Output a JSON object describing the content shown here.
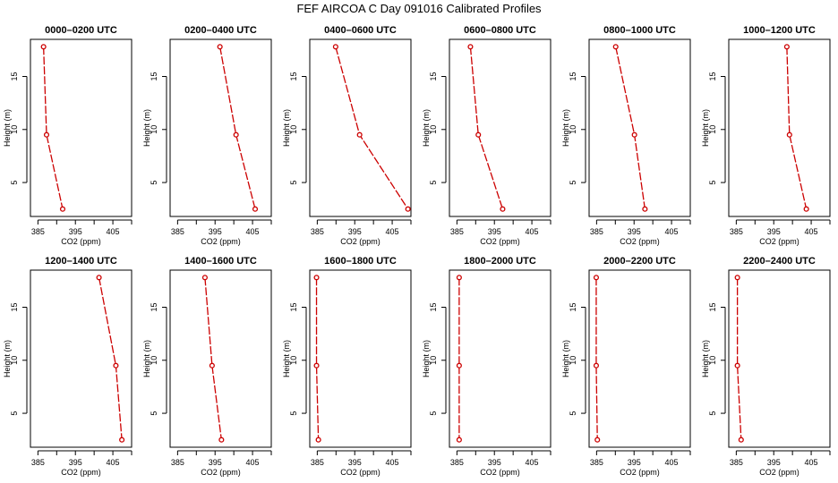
{
  "title": "FEF AIRCOA C  Day 091016  Calibrated Profiles",
  "chart_data": {
    "type": "line",
    "xlabel": "CO2 (ppm)",
    "ylabel": "Height (m)",
    "xlim": [
      383,
      410
    ],
    "ylim": [
      1.8,
      18.5
    ],
    "xticks": [
      385,
      395,
      405
    ],
    "xminor": [
      390,
      400,
      410
    ],
    "yticks": [
      5,
      10,
      15
    ],
    "series_color": "#cc0000",
    "panels": [
      {
        "title": "0000–0200 UTC",
        "heights": [
          17.8,
          9.5,
          2.5
        ],
        "co2": [
          386.5,
          387.3,
          391.6
        ]
      },
      {
        "title": "0200–0400 UTC",
        "heights": [
          17.8,
          9.5,
          2.5
        ],
        "co2": [
          396.3,
          400.6,
          405.7
        ]
      },
      {
        "title": "0400–0600 UTC",
        "heights": [
          17.8,
          9.5,
          2.5
        ],
        "co2": [
          389.9,
          396.3,
          409.2
        ]
      },
      {
        "title": "0600–0800 UTC",
        "heights": [
          17.8,
          9.5,
          2.5
        ],
        "co2": [
          388.6,
          390.7,
          397.2
        ]
      },
      {
        "title": "0800–1000 UTC",
        "heights": [
          17.8,
          9.5,
          2.5
        ],
        "co2": [
          390.1,
          395.1,
          397.9
        ]
      },
      {
        "title": "1000–1200 UTC",
        "heights": [
          17.8,
          9.5,
          2.5
        ],
        "co2": [
          398.5,
          399.2,
          403.7
        ]
      },
      {
        "title": "1200–1400 UTC",
        "heights": [
          17.8,
          9.5,
          2.5
        ],
        "co2": [
          401.3,
          405.8,
          407.4
        ]
      },
      {
        "title": "1400–1600 UTC",
        "heights": [
          17.8,
          9.5,
          2.5
        ],
        "co2": [
          392.3,
          394.2,
          396.7
        ]
      },
      {
        "title": "1600–1800 UTC",
        "heights": [
          17.8,
          9.5,
          2.5
        ],
        "co2": [
          384.8,
          384.8,
          385.3
        ]
      },
      {
        "title": "1800–2000 UTC",
        "heights": [
          17.8,
          9.5,
          2.5
        ],
        "co2": [
          385.6,
          385.6,
          385.6
        ]
      },
      {
        "title": "2000–2200 UTC",
        "heights": [
          17.8,
          9.5,
          2.5
        ],
        "co2": [
          384.9,
          384.9,
          385.2
        ]
      },
      {
        "title": "2200–2400 UTC",
        "heights": [
          17.8,
          9.5,
          2.5
        ],
        "co2": [
          385.3,
          385.3,
          386.3
        ]
      }
    ]
  }
}
